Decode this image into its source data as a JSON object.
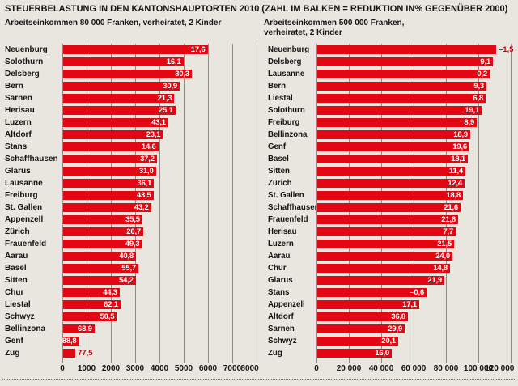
{
  "title": "STEUERBELASTUNG IN DEN KANTONSHAUPTORTEN 2010 (ZAHL IM BALKEN = REDUKTION IN% GEGENÜBER 2000)",
  "colors": {
    "background": "#e9e6df",
    "bar_red": "#e30613",
    "grid_line": "#8d8d81",
    "value_text_inside": "#ffffff",
    "value_text_outside": "#c60011"
  },
  "chart_data": [
    {
      "type": "bar",
      "orientation": "horizontal",
      "subtitle": "Arbeitseinkommen 80 000 Franken, verheiratet, 2 Kinder",
      "unit": "Franken",
      "xlim": [
        0,
        8000
      ],
      "grid": true,
      "xtick_labels": [
        "0",
        "1000",
        "2000",
        "3000",
        "4000",
        "5000",
        "6000",
        "7000",
        "8000"
      ],
      "rows": [
        {
          "city": "Neuenburg",
          "tax_chf": 5950,
          "reduction_pct": 17.6,
          "reduction_label": "17,6",
          "value_label_position": "inside"
        },
        {
          "city": "Solothurn",
          "tax_chf": 4950,
          "reduction_pct": 16.1,
          "reduction_label": "16,1",
          "value_label_position": "inside"
        },
        {
          "city": "Delsberg",
          "tax_chf": 5300,
          "reduction_pct": 30.3,
          "reduction_label": "30,3",
          "value_label_position": "inside"
        },
        {
          "city": "Bern",
          "tax_chf": 4800,
          "reduction_pct": 30.9,
          "reduction_label": "30,9",
          "value_label_position": "inside"
        },
        {
          "city": "Sarnen",
          "tax_chf": 4580,
          "reduction_pct": 21.3,
          "reduction_label": "21,3",
          "value_label_position": "inside"
        },
        {
          "city": "Herisau",
          "tax_chf": 4620,
          "reduction_pct": 25.1,
          "reduction_label": "25,1",
          "value_label_position": "inside"
        },
        {
          "city": "Luzern",
          "tax_chf": 4330,
          "reduction_pct": 43.1,
          "reduction_label": "43,1",
          "value_label_position": "inside"
        },
        {
          "city": "Altdorf",
          "tax_chf": 4110,
          "reduction_pct": 23.1,
          "reduction_label": "23,1",
          "value_label_position": "inside"
        },
        {
          "city": "Stans",
          "tax_chf": 3920,
          "reduction_pct": 14.6,
          "reduction_label": "14,6",
          "value_label_position": "inside"
        },
        {
          "city": "Schaffhausen",
          "tax_chf": 3860,
          "reduction_pct": 37.2,
          "reduction_label": "37,2",
          "value_label_position": "inside"
        },
        {
          "city": "Glarus",
          "tax_chf": 3820,
          "reduction_pct": 31.0,
          "reduction_label": "31,0",
          "value_label_position": "inside"
        },
        {
          "city": "Lausanne",
          "tax_chf": 3740,
          "reduction_pct": 36.1,
          "reduction_label": "36,1",
          "value_label_position": "inside"
        },
        {
          "city": "Freiburg",
          "tax_chf": 3720,
          "reduction_pct": 43.5,
          "reduction_label": "43,5",
          "value_label_position": "inside"
        },
        {
          "city": "St. Gallen",
          "tax_chf": 3620,
          "reduction_pct": 43.2,
          "reduction_label": "43,2",
          "value_label_position": "inside"
        },
        {
          "city": "Appenzell",
          "tax_chf": 3260,
          "reduction_pct": 35.5,
          "reduction_label": "35,5",
          "value_label_position": "inside"
        },
        {
          "city": "Zürich",
          "tax_chf": 3300,
          "reduction_pct": 20.7,
          "reduction_label": "20,7",
          "value_label_position": "inside"
        },
        {
          "city": "Frauenfeld",
          "tax_chf": 3250,
          "reduction_pct": 49.3,
          "reduction_label": "49,3",
          "value_label_position": "inside"
        },
        {
          "city": "Aarau",
          "tax_chf": 3000,
          "reduction_pct": 40.8,
          "reduction_label": "40,8",
          "value_label_position": "inside"
        },
        {
          "city": "Basel",
          "tax_chf": 3100,
          "reduction_pct": 55.7,
          "reduction_label": "55,7",
          "value_label_position": "inside"
        },
        {
          "city": "Sitten",
          "tax_chf": 2990,
          "reduction_pct": 54.2,
          "reduction_label": "54,2",
          "value_label_position": "inside"
        },
        {
          "city": "Chur",
          "tax_chf": 2330,
          "reduction_pct": 44.3,
          "reduction_label": "44,3",
          "value_label_position": "inside"
        },
        {
          "city": "Liestal",
          "tax_chf": 2360,
          "reduction_pct": 62.1,
          "reduction_label": "62,1",
          "value_label_position": "inside"
        },
        {
          "city": "Schwyz",
          "tax_chf": 2210,
          "reduction_pct": 50.5,
          "reduction_label": "50,5",
          "value_label_position": "inside"
        },
        {
          "city": "Bellinzona",
          "tax_chf": 1290,
          "reduction_pct": 68.9,
          "reduction_label": "68,9",
          "value_label_position": "inside"
        },
        {
          "city": "Genf",
          "tax_chf": 650,
          "reduction_pct": 88.8,
          "reduction_label": "88,8",
          "value_label_position": "inside"
        },
        {
          "city": "Zug",
          "tax_chf": 500,
          "reduction_pct": 77.5,
          "reduction_label": "77,5",
          "value_label_position": "outside"
        }
      ]
    },
    {
      "type": "bar",
      "orientation": "horizontal",
      "subtitle": "Arbeitseinkommen 500 000 Franken, verheiratet, 2 Kinder",
      "unit": "Franken",
      "xlim": [
        0,
        120000
      ],
      "grid": true,
      "xtick_labels": [
        "0",
        "20 000",
        "40 000",
        "60 000",
        "80 000",
        "100 000",
        "120 000"
      ],
      "rows": [
        {
          "city": "Neuenburg",
          "tax_chf": 110500,
          "reduction_pct": -1.5,
          "reduction_label": "–1,5",
          "value_label_position": "outside"
        },
        {
          "city": "Delsberg",
          "tax_chf": 108500,
          "reduction_pct": 9.1,
          "reduction_label": "9,1",
          "value_label_position": "inside"
        },
        {
          "city": "Lausanne",
          "tax_chf": 106500,
          "reduction_pct": 0.2,
          "reduction_label": "0,2",
          "value_label_position": "inside"
        },
        {
          "city": "Bern",
          "tax_chf": 104500,
          "reduction_pct": 9.3,
          "reduction_label": "9,3",
          "value_label_position": "inside"
        },
        {
          "city": "Liestal",
          "tax_chf": 104000,
          "reduction_pct": 6.8,
          "reduction_label": "6,8",
          "value_label_position": "inside"
        },
        {
          "city": "Solothurn",
          "tax_chf": 101500,
          "reduction_pct": 19.1,
          "reduction_label": "19,1",
          "value_label_position": "inside"
        },
        {
          "city": "Freiburg",
          "tax_chf": 98500,
          "reduction_pct": 8.9,
          "reduction_label": "8,9",
          "value_label_position": "inside"
        },
        {
          "city": "Bellinzona",
          "tax_chf": 94500,
          "reduction_pct": 18.9,
          "reduction_label": "18,9",
          "value_label_position": "inside"
        },
        {
          "city": "Genf",
          "tax_chf": 94000,
          "reduction_pct": 19.6,
          "reduction_label": "19,6",
          "value_label_position": "inside"
        },
        {
          "city": "Basel",
          "tax_chf": 93000,
          "reduction_pct": 18.1,
          "reduction_label": "18,1",
          "value_label_position": "inside"
        },
        {
          "city": "Sitten",
          "tax_chf": 91500,
          "reduction_pct": 11.4,
          "reduction_label": "11,4",
          "value_label_position": "inside"
        },
        {
          "city": "Zürich",
          "tax_chf": 91000,
          "reduction_pct": 12.4,
          "reduction_label": "12,4",
          "value_label_position": "inside"
        },
        {
          "city": "St. Gallen",
          "tax_chf": 90000,
          "reduction_pct": 18.8,
          "reduction_label": "18,8",
          "value_label_position": "inside"
        },
        {
          "city": "Schaffhausen",
          "tax_chf": 88500,
          "reduction_pct": 21.6,
          "reduction_label": "21,6",
          "value_label_position": "inside"
        },
        {
          "city": "Frauenfeld",
          "tax_chf": 87000,
          "reduction_pct": 21.8,
          "reduction_label": "21,8",
          "value_label_position": "inside"
        },
        {
          "city": "Herisau",
          "tax_chf": 85500,
          "reduction_pct": 7.7,
          "reduction_label": "7,7",
          "value_label_position": "inside"
        },
        {
          "city": "Luzern",
          "tax_chf": 84500,
          "reduction_pct": 21.5,
          "reduction_label": "21,5",
          "value_label_position": "inside"
        },
        {
          "city": "Aarau",
          "tax_chf": 83500,
          "reduction_pct": 24.0,
          "reduction_label": "24,0",
          "value_label_position": "inside"
        },
        {
          "city": "Chur",
          "tax_chf": 82000,
          "reduction_pct": 14.8,
          "reduction_label": "14,8",
          "value_label_position": "inside"
        },
        {
          "city": "Glarus",
          "tax_chf": 78500,
          "reduction_pct": 21.9,
          "reduction_label": "21,9",
          "value_label_position": "inside"
        },
        {
          "city": "Stans",
          "tax_chf": 67500,
          "reduction_pct": -0.6,
          "reduction_label": "–0,6",
          "value_label_position": "inside"
        },
        {
          "city": "Appenzell",
          "tax_chf": 63000,
          "reduction_pct": 17.1,
          "reduction_label": "17,1",
          "value_label_position": "inside"
        },
        {
          "city": "Altdorf",
          "tax_chf": 56000,
          "reduction_pct": 36.8,
          "reduction_label": "36,8",
          "value_label_position": "inside"
        },
        {
          "city": "Sarnen",
          "tax_chf": 54000,
          "reduction_pct": 29.9,
          "reduction_label": "29,9",
          "value_label_position": "inside"
        },
        {
          "city": "Schwyz",
          "tax_chf": 50000,
          "reduction_pct": 20.1,
          "reduction_label": "20,1",
          "value_label_position": "inside"
        },
        {
          "city": "Zug",
          "tax_chf": 46000,
          "reduction_pct": 16.0,
          "reduction_label": "16,0",
          "value_label_position": "inside"
        }
      ]
    }
  ]
}
